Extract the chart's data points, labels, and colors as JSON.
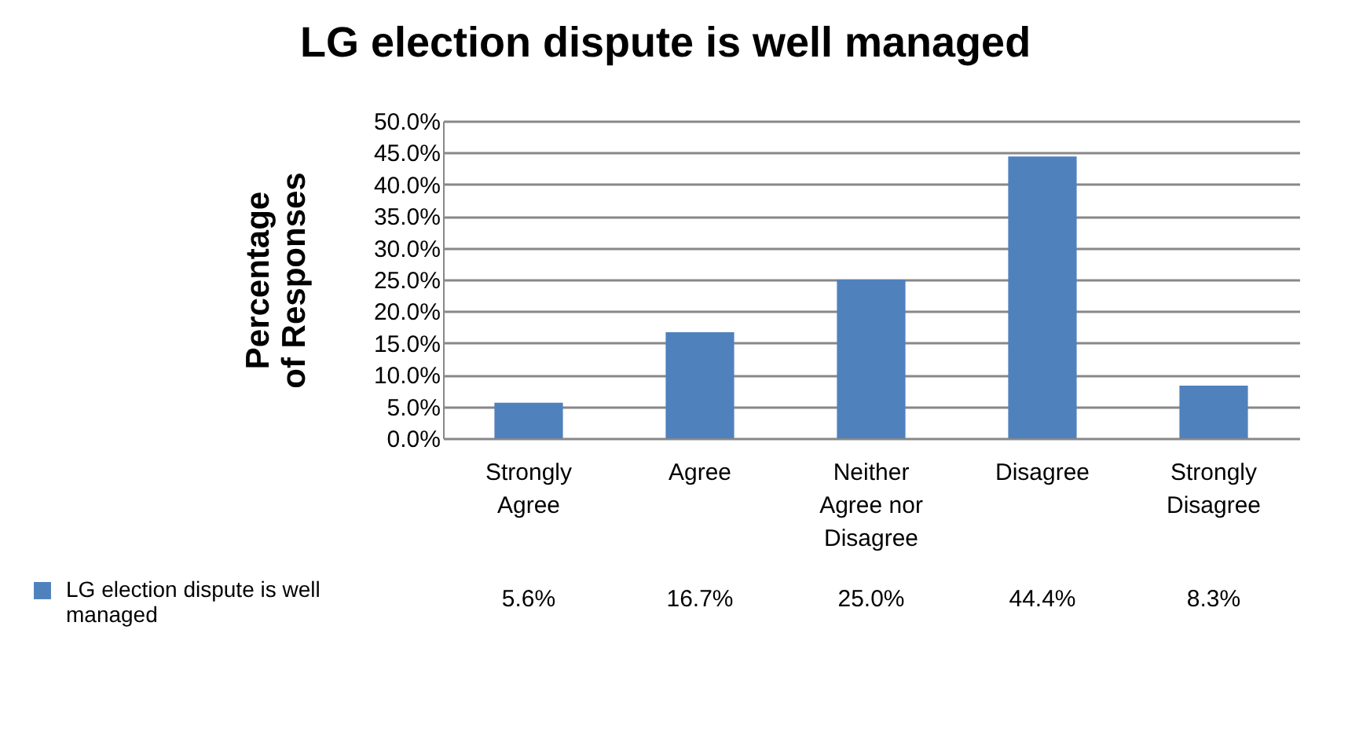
{
  "chart_data": {
    "type": "bar",
    "title": "LG election dispute is well managed",
    "ylabel": "Percentage of Responses",
    "categories": [
      "Strongly Agree",
      "Agree",
      "Neither Agree nor Disagree",
      "Disagree",
      "Strongly Disagree"
    ],
    "series": [
      {
        "name": "LG election dispute is well managed",
        "color": "#4f81bd",
        "values": [
          5.6,
          16.7,
          25.0,
          44.4,
          8.3
        ],
        "value_labels": [
          "5.6%",
          "16.7%",
          "25.0%",
          "44.4%",
          "8.3%"
        ]
      }
    ],
    "ylim": [
      0,
      50
    ],
    "yticks": [
      {
        "value": 0,
        "label": "0.0%"
      },
      {
        "value": 5,
        "label": "5.0%"
      },
      {
        "value": 10,
        "label": "10.0%"
      },
      {
        "value": 15,
        "label": "15.0%"
      },
      {
        "value": 20,
        "label": "20.0%"
      },
      {
        "value": 25,
        "label": "25.0%"
      },
      {
        "value": 30,
        "label": "30.0%"
      },
      {
        "value": 35,
        "label": "35.0%"
      },
      {
        "value": 40,
        "label": "40.0%"
      },
      {
        "value": 45,
        "label": "45.0%"
      },
      {
        "value": 50,
        "label": "50.0%"
      }
    ],
    "grid": "y",
    "legend": "bottom left"
  }
}
